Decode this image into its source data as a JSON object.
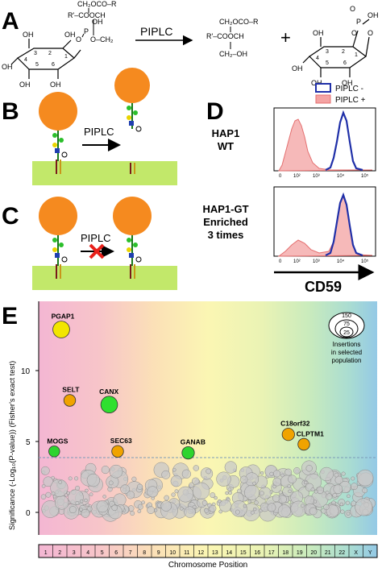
{
  "panels": {
    "a": {
      "label": "A",
      "arrow_label": "PIPLC",
      "plus": "+",
      "substrate": {
        "acyl_top": "CH₂OCO–R",
        "acyl_mid": "R'–COOCH",
        "linker_o": "O",
        "linker_p": "P",
        "linker_ch2": "O–CH₂",
        "oh": "OH"
      },
      "product_dag": {
        "top": "CH₂OCO–R",
        "mid": "R'–COOCH",
        "bottom": "CH₂–OH"
      },
      "product_inositol": {
        "o": "O",
        "p": "P",
        "oh": "OH"
      },
      "ring_numbers": [
        "1",
        "2",
        "3",
        "4",
        "5",
        "6"
      ]
    },
    "b": {
      "label": "B",
      "arrow_label": "PIPLC"
    },
    "c": {
      "label": "C",
      "arrow_label": "PIPLC"
    },
    "d": {
      "label": "D",
      "legend": [
        {
          "name": "PIPLC -",
          "color": "#1f2fa8"
        },
        {
          "name": "PIPLC +",
          "color": "#e46f6f"
        }
      ],
      "row1_label": [
        "HAP1",
        "WT"
      ],
      "row2_label": [
        "HAP1-GT",
        "Enriched",
        "3 times"
      ],
      "x_ticks": [
        "0",
        "10²",
        "10³",
        "10⁴",
        "10⁵"
      ],
      "x_axis_label": "CD59"
    },
    "e": {
      "label": "E",
      "y_axis_label": "Significance (-Log₁₀(P-value)) (Fisher's exact test)",
      "x_axis_label": "Chromosome Position",
      "y_ticks": [
        "0",
        "5",
        "10"
      ],
      "chromosomes": [
        "1",
        "2",
        "3",
        "4",
        "5",
        "6",
        "7",
        "8",
        "9",
        "10",
        "11",
        "12",
        "13",
        "14",
        "15",
        "16",
        "17",
        "18",
        "19",
        "20",
        "21",
        "22",
        "X",
        "Y"
      ],
      "size_legend": {
        "values": [
          "150",
          "75",
          "25"
        ],
        "caption": [
          "Insertions",
          "in selected",
          "population"
        ]
      },
      "genes": [
        {
          "name": "PGAP1",
          "position": 2.1,
          "significance": 12.9,
          "size": 75,
          "color": "#f2e600"
        },
        {
          "name": "SELT",
          "position": 2.7,
          "significance": 7.9,
          "size": 25,
          "color": "#f0a300"
        },
        {
          "name": "CANX",
          "position": 5.5,
          "significance": 7.6,
          "size": 75,
          "color": "#2fe02f"
        },
        {
          "name": "MOGS",
          "position": 1.6,
          "significance": 4.3,
          "size": 20,
          "color": "#2ed42e"
        },
        {
          "name": "SEC63",
          "position": 6.1,
          "significance": 4.3,
          "size": 25,
          "color": "#f0a300"
        },
        {
          "name": "GANAB",
          "position": 11.1,
          "significance": 4.2,
          "size": 30,
          "color": "#2ed42e"
        },
        {
          "name": "C18orf32",
          "position": 18.2,
          "significance": 5.5,
          "size": 30,
          "color": "#f0a300"
        },
        {
          "name": "CLPTM1",
          "position": 19.3,
          "significance": 4.8,
          "size": 25,
          "color": "#f0a300"
        }
      ]
    }
  }
}
